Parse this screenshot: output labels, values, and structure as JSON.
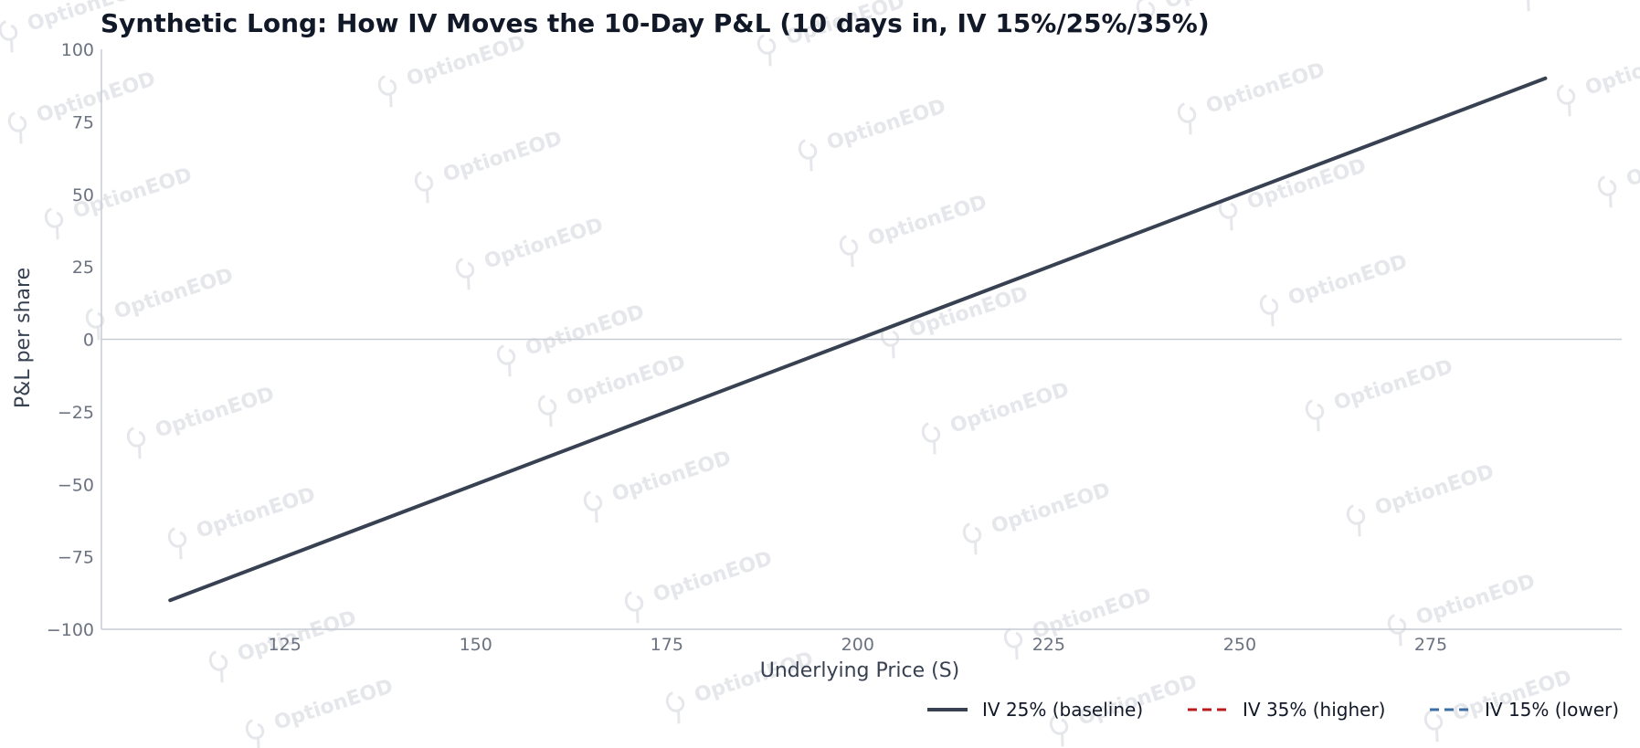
{
  "chart_data": {
    "type": "line",
    "title": "Synthetic Long: How IV Moves the 10-Day P&L (10 days in, IV 15%/25%/35%)",
    "xlabel": "Underlying Price (S)",
    "ylabel": "P&L per share",
    "xlim": [
      101,
      300
    ],
    "ylim": [
      -100,
      100
    ],
    "x_ticks": [
      "125",
      "150",
      "175",
      "200",
      "225",
      "250",
      "275"
    ],
    "x_tick_values": [
      125,
      150,
      175,
      200,
      225,
      250,
      275
    ],
    "y_ticks": [
      "100",
      "75",
      "50",
      "25",
      "0",
      "−25",
      "−50",
      "−75",
      "−100"
    ],
    "y_tick_values": [
      100,
      75,
      50,
      25,
      0,
      -25,
      -50,
      -75,
      -100
    ],
    "grid": false,
    "zero_line": true,
    "legend_position": "bottom-right",
    "watermark": "OptionEOD",
    "series": [
      {
        "name": "IV 25% (baseline)",
        "color": "#374151",
        "style": "solid",
        "x": [
          110,
          290
        ],
        "y": [
          -90,
          90
        ]
      },
      {
        "name": "IV 35% (higher)",
        "color": "#b91c1c",
        "style": "dashed",
        "x": [
          110,
          290
        ],
        "y": [
          -90,
          90
        ]
      },
      {
        "name": "IV 15% (lower)",
        "color": "#3b6ea5",
        "style": "dashed",
        "x": [
          110,
          290
        ],
        "y": [
          -90,
          90
        ]
      }
    ]
  }
}
